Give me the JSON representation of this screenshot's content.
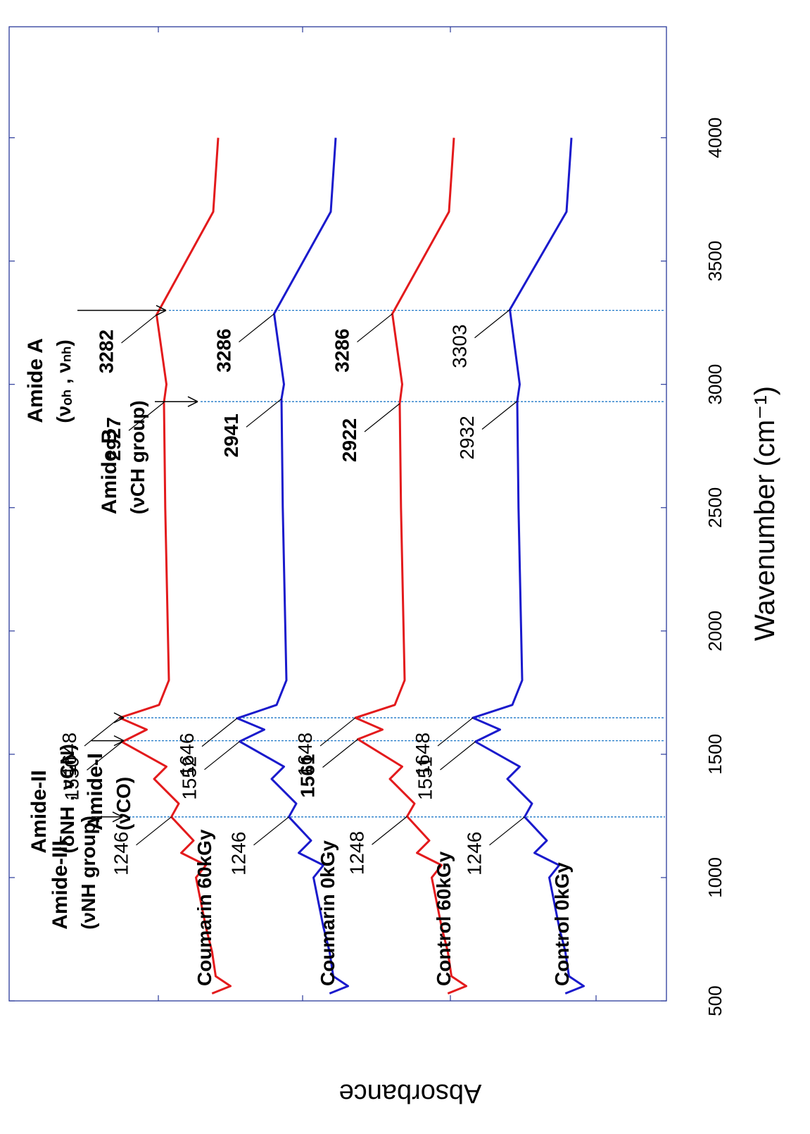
{
  "chart_data": {
    "type": "line",
    "xlabel": "Wavenumber (cm⁻¹)",
    "ylabel": "Absorbance",
    "x_ticks": [
      "500",
      "1000",
      "1500",
      "2000",
      "2500",
      "3000",
      "3500",
      "4000"
    ],
    "xlim": [
      4450,
      500
    ],
    "x_reversed": true,
    "series": [
      {
        "name": "Coumarin 60kGy",
        "color": "#e31a1c",
        "x": [
          4000,
          3700,
          3282,
          3000,
          2927,
          2500,
          1800,
          1700,
          1648,
          1600,
          1550,
          1450,
          1400,
          1300,
          1246,
          1150,
          1100,
          1050,
          1000,
          800,
          700,
          600,
          560,
          530
        ],
        "y": [
          0.2,
          0.24,
          0.7,
          0.62,
          0.64,
          0.63,
          0.6,
          0.68,
          1.0,
          0.78,
          0.98,
          0.62,
          0.72,
          0.52,
          0.58,
          0.4,
          0.5,
          0.3,
          0.38,
          0.3,
          0.25,
          0.22,
          0.1,
          0.25
        ]
      },
      {
        "name": "Coumarin 0kGy",
        "color": "#1a1acc",
        "x": [
          4000,
          3700,
          3286,
          3000,
          2941,
          2500,
          1800,
          1700,
          1646,
          1600,
          1552,
          1450,
          1400,
          1300,
          1246,
          1150,
          1100,
          1050,
          1000,
          800,
          700,
          600,
          560,
          530
        ],
        "y": [
          0.2,
          0.24,
          0.7,
          0.62,
          0.64,
          0.63,
          0.6,
          0.68,
          1.0,
          0.78,
          0.98,
          0.62,
          0.72,
          0.52,
          0.58,
          0.4,
          0.5,
          0.3,
          0.38,
          0.3,
          0.25,
          0.22,
          0.1,
          0.25
        ]
      },
      {
        "name": "Control 60kGy",
        "color": "#e31a1c",
        "x": [
          4000,
          3700,
          3286,
          3000,
          2922,
          2500,
          1800,
          1700,
          1648,
          1600,
          1561,
          1450,
          1400,
          1300,
          1248,
          1150,
          1100,
          1050,
          1000,
          800,
          700,
          600,
          560,
          530
        ],
        "y": [
          0.2,
          0.24,
          0.7,
          0.62,
          0.64,
          0.63,
          0.6,
          0.68,
          1.0,
          0.78,
          0.98,
          0.62,
          0.72,
          0.52,
          0.58,
          0.4,
          0.5,
          0.3,
          0.38,
          0.3,
          0.25,
          0.22,
          0.1,
          0.25
        ]
      },
      {
        "name": "Control 0kGy",
        "color": "#1a1acc",
        "x": [
          4000,
          3700,
          3303,
          3000,
          2932,
          2500,
          1800,
          1700,
          1648,
          1600,
          1551,
          1450,
          1400,
          1300,
          1246,
          1150,
          1100,
          1050,
          1000,
          800,
          700,
          600,
          560,
          530
        ],
        "y": [
          0.2,
          0.24,
          0.7,
          0.62,
          0.64,
          0.63,
          0.6,
          0.68,
          1.0,
          0.78,
          0.98,
          0.62,
          0.72,
          0.52,
          0.58,
          0.4,
          0.5,
          0.3,
          0.38,
          0.3,
          0.25,
          0.22,
          0.1,
          0.25
        ]
      }
    ],
    "series_labels": [
      "Coumarin 60kGy",
      "Coumarin 0kGy",
      "Control 60kGy",
      "Control 0kGy"
    ],
    "peak_labels": [
      {
        "series": 0,
        "x": 3282,
        "text": "3282",
        "bold": true
      },
      {
        "series": 0,
        "x": 2927,
        "text": "2927",
        "bold": true
      },
      {
        "series": 0,
        "x": 1648,
        "text": "1648",
        "bold": false
      },
      {
        "series": 0,
        "x": 1550,
        "text": "1550",
        "bold": false
      },
      {
        "series": 0,
        "x": 1246,
        "text": "1246",
        "bold": false
      },
      {
        "series": 1,
        "x": 3286,
        "text": "3286",
        "bold": true
      },
      {
        "series": 1,
        "x": 2941,
        "text": "2941",
        "bold": true
      },
      {
        "series": 1,
        "x": 1646,
        "text": "1646",
        "bold": false
      },
      {
        "series": 1,
        "x": 1552,
        "text": "1552",
        "bold": false
      },
      {
        "series": 1,
        "x": 1246,
        "text": "1246",
        "bold": false
      },
      {
        "series": 2,
        "x": 3286,
        "text": "3286",
        "bold": true
      },
      {
        "series": 2,
        "x": 2922,
        "text": "2922",
        "bold": true
      },
      {
        "series": 2,
        "x": 1648,
        "text": "1648",
        "bold": false
      },
      {
        "series": 2,
        "x": 1561,
        "text": "1561",
        "bold": true
      },
      {
        "series": 2,
        "x": 1248,
        "text": "1248",
        "bold": false
      },
      {
        "series": 3,
        "x": 3303,
        "text": "3303",
        "bold": false
      },
      {
        "series": 3,
        "x": 2932,
        "text": "2932",
        "bold": false
      },
      {
        "series": 3,
        "x": 1648,
        "text": "1648",
        "bold": false
      },
      {
        "series": 3,
        "x": 1551,
        "text": "1551",
        "bold": false
      },
      {
        "series": 3,
        "x": 1246,
        "text": "1246",
        "bold": false
      }
    ],
    "band_annotations": [
      {
        "name": "Amide A",
        "line1": "Amide A",
        "line2": "(νₒₕ , νₙₕ)",
        "x": 3300
      },
      {
        "name": "Amide B",
        "line1": "Amide B",
        "line2": "(νCH group)",
        "x": 2930
      },
      {
        "name": "Amide-I",
        "line1": "Amide-I",
        "line2": "(νCO)",
        "x": 1648
      },
      {
        "name": "Amide-II",
        "line1": "Amide-II",
        "line2": "(δNH , νCN)",
        "x": 1555
      },
      {
        "name": "Amide-III",
        "line1": "Amide-III",
        "line2": "(νNH group)",
        "x": 1246
      }
    ],
    "band_line_color": "#1f78c8"
  }
}
